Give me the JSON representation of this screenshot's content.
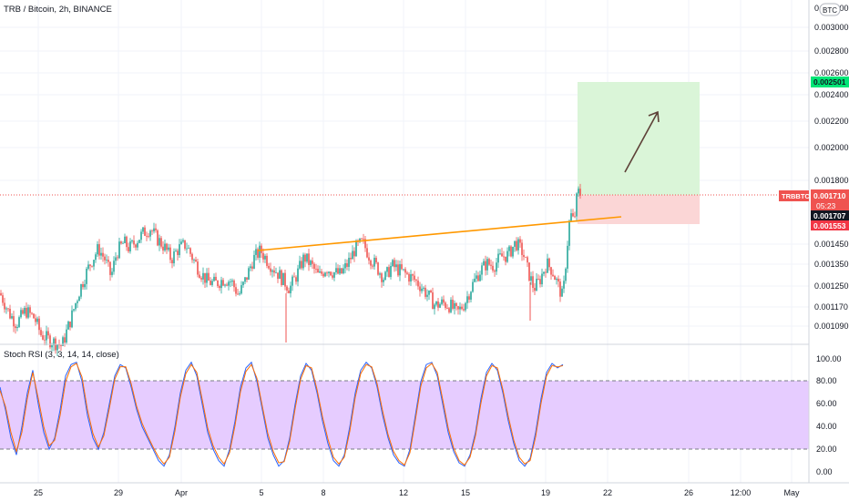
{
  "header": {
    "symbol_title": "TRB / Bitcoin, 2h, BINANCE",
    "currency_badge": "BTC"
  },
  "indicator": {
    "title": "Stoch RSI (3, 3, 14, 14, close)",
    "ticks": [
      "100.00",
      "80.00",
      "60.00",
      "40.00",
      "20.00",
      "0.00"
    ],
    "band_color": "#e6ccff"
  },
  "price_axis": {
    "top_partial_label": "0.003200",
    "ticks": [
      "0.003000",
      "0.002800",
      "0.002600",
      "0.002400",
      "0.002200",
      "0.002000",
      "0.001800",
      "0.001450",
      "0.001350",
      "0.001250",
      "0.001170",
      "0.001090"
    ]
  },
  "badges": {
    "target_label": "0.002501",
    "ticker_label": "TRBBTC",
    "last_price_label": "0.001710",
    "countdown_label": "05:23",
    "entry_label": "0.001707",
    "stop_label": "0.001553"
  },
  "time_axis": {
    "labels": [
      "25",
      "29",
      "Apr",
      "5",
      "8",
      "12",
      "15",
      "19",
      "22",
      "26",
      "12:00",
      "May"
    ]
  },
  "chart_data": {
    "type": "candlestick",
    "title": "TRB / Bitcoin, 2h, BINANCE",
    "currency": "BTC",
    "y_scale": "log",
    "ylim": [
      0.00103,
      0.0034
    ],
    "last_price": 0.00171,
    "long_position": {
      "target": 0.002501,
      "entry": 0.001707,
      "stop": 0.001553
    },
    "trendline": {
      "from": [
        "Apr 5",
        0.00141
      ],
      "to": [
        "Apr 21",
        0.00162
      ],
      "color": "#ff9800"
    },
    "colors": {
      "up": "#26a69a",
      "down": "#ef5350",
      "target_zone": "#daf5d8",
      "stop_zone": "#fbd6d6",
      "trendline": "#ff9800"
    },
    "series_path": [
      [
        0,
        0.00122
      ],
      [
        10,
        0.00114
      ],
      [
        18,
        0.0011
      ],
      [
        28,
        0.00115
      ],
      [
        38,
        0.00112
      ],
      [
        45,
        0.00106
      ],
      [
        55,
        0.00104
      ],
      [
        68,
        0.00102
      ],
      [
        78,
        0.00112
      ],
      [
        88,
        0.00124
      ],
      [
        98,
        0.00134
      ],
      [
        108,
        0.00142
      ],
      [
        115,
        0.00137
      ],
      [
        122,
        0.00129
      ],
      [
        128,
        0.0014
      ],
      [
        136,
        0.00145
      ],
      [
        142,
        0.00142
      ],
      [
        150,
        0.00146
      ],
      [
        158,
        0.0015
      ],
      [
        165,
        0.00152
      ],
      [
        172,
        0.00147
      ],
      [
        180,
        0.00143
      ],
      [
        188,
        0.00137
      ],
      [
        196,
        0.00142
      ],
      [
        204,
        0.00144
      ],
      [
        212,
        0.00137
      ],
      [
        220,
        0.00131
      ],
      [
        228,
        0.00127
      ],
      [
        236,
        0.00126
      ],
      [
        246,
        0.00128
      ],
      [
        254,
        0.00127
      ],
      [
        262,
        0.00121
      ],
      [
        270,
        0.00128
      ],
      [
        278,
        0.00137
      ],
      [
        286,
        0.00141
      ],
      [
        294,
        0.00136
      ],
      [
        302,
        0.00132
      ],
      [
        310,
        0.00128
      ],
      [
        318,
        0.00124
      ],
      [
        326,
        0.0013
      ],
      [
        334,
        0.00138
      ],
      [
        342,
        0.00134
      ],
      [
        350,
        0.00129
      ],
      [
        358,
        0.00133
      ],
      [
        366,
        0.00131
      ],
      [
        374,
        0.0013
      ],
      [
        382,
        0.00135
      ],
      [
        390,
        0.00142
      ],
      [
        398,
        0.00145
      ],
      [
        406,
        0.00138
      ],
      [
        414,
        0.00133
      ],
      [
        422,
        0.00128
      ],
      [
        430,
        0.00134
      ],
      [
        438,
        0.00132
      ],
      [
        446,
        0.0013
      ],
      [
        454,
        0.00128
      ],
      [
        462,
        0.00125
      ],
      [
        470,
        0.00121
      ],
      [
        478,
        0.00117
      ],
      [
        486,
        0.00118
      ],
      [
        494,
        0.00117
      ],
      [
        502,
        0.00114
      ],
      [
        510,
        0.00118
      ],
      [
        518,
        0.00125
      ],
      [
        526,
        0.00131
      ],
      [
        534,
        0.00135
      ],
      [
        542,
        0.00134
      ],
      [
        550,
        0.00138
      ],
      [
        558,
        0.00139
      ],
      [
        566,
        0.00145
      ],
      [
        574,
        0.0014
      ],
      [
        580,
        0.00131
      ],
      [
        586,
        0.00124
      ],
      [
        592,
        0.00127
      ],
      [
        600,
        0.00135
      ],
      [
        606,
        0.00132
      ],
      [
        612,
        0.00126
      ],
      [
        618,
        0.0012
      ],
      [
        622,
        0.0014
      ],
      [
        626,
        0.0016
      ],
      [
        630,
        0.00155
      ],
      [
        634,
        0.00172
      ],
      [
        637,
        0.00171
      ]
    ],
    "stoch_rsi": {
      "range": [
        0,
        100
      ],
      "bands": [
        20,
        80
      ],
      "series": [
        {
          "color": "#2962ff",
          "x_step": 6,
          "values": [
            75,
            55,
            30,
            15,
            40,
            70,
            90,
            60,
            35,
            20,
            30,
            55,
            85,
            95,
            97,
            80,
            50,
            30,
            20,
            35,
            60,
            85,
            95,
            92,
            75,
            55,
            40,
            30,
            20,
            10,
            5,
            15,
            40,
            70,
            90,
            97,
            85,
            60,
            35,
            20,
            10,
            5,
            20,
            45,
            75,
            92,
            97,
            80,
            55,
            30,
            15,
            5,
            10,
            30,
            60,
            85,
            96,
            90,
            70,
            45,
            25,
            10,
            5,
            15,
            40,
            70,
            90,
            97,
            92,
            75,
            50,
            30,
            15,
            8,
            5,
            20,
            50,
            80,
            95,
            97,
            85,
            60,
            35,
            18,
            8,
            5,
            15,
            35,
            65,
            88,
            96,
            90,
            70,
            45,
            25,
            10,
            5,
            12,
            35,
            65,
            88,
            96,
            92,
            95
          ]
        },
        {
          "color": "#ff6d00",
          "x_step": 6,
          "values": [
            72,
            58,
            35,
            18,
            35,
            65,
            88,
            65,
            40,
            23,
            28,
            50,
            80,
            93,
            96,
            84,
            55,
            34,
            22,
            32,
            56,
            82,
            93,
            93,
            78,
            58,
            43,
            32,
            22,
            13,
            7,
            13,
            36,
            66,
            87,
            95,
            88,
            64,
            39,
            23,
            13,
            7,
            17,
            41,
            71,
            89,
            95,
            83,
            58,
            34,
            18,
            8,
            9,
            27,
            56,
            82,
            94,
            92,
            73,
            49,
            29,
            13,
            7,
            13,
            36,
            66,
            87,
            95,
            93,
            78,
            54,
            33,
            18,
            10,
            6,
            17,
            46,
            76,
            92,
            96,
            88,
            64,
            39,
            21,
            10,
            6,
            13,
            32,
            61,
            85,
            94,
            92,
            73,
            49,
            28,
            13,
            7,
            10,
            31,
            61,
            85,
            94,
            93,
            94
          ]
        }
      ]
    }
  }
}
